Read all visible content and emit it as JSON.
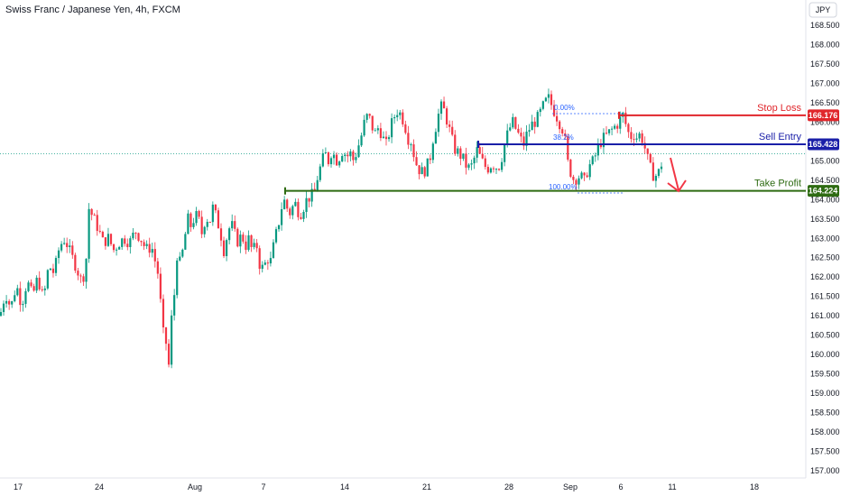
{
  "header": {
    "title": "Swiss Franc / Japanese Yen, 4h, FXCM",
    "currency_button": "JPY"
  },
  "chart_data": {
    "type": "candlestick",
    "ylim": [
      156.75,
      169.05
    ],
    "y_ticks": [
      "168.500",
      "168.000",
      "167.500",
      "167.000",
      "166.500",
      "166.000",
      "165.500",
      "165.000",
      "164.500",
      "164.000",
      "163.500",
      "163.000",
      "162.500",
      "162.000",
      "161.500",
      "161.000",
      "160.500",
      "160.000",
      "159.500",
      "159.000",
      "158.500",
      "158.000",
      "157.500",
      "157.000"
    ],
    "x_ticks": [
      "17",
      "24",
      "Aug",
      "7",
      "14",
      "21",
      "28",
      "Sep",
      "6",
      "11",
      "18"
    ],
    "colors": {
      "up": "#089981",
      "down": "#f23645"
    },
    "price_path": [
      [
        0,
        161.0
      ],
      [
        6,
        161.6
      ],
      [
        12,
        161.2
      ],
      [
        18,
        161.8
      ],
      [
        24,
        161.3
      ],
      [
        30,
        161.9
      ],
      [
        36,
        161.5
      ],
      [
        42,
        162.0
      ],
      [
        48,
        161.4
      ],
      [
        54,
        162.3
      ],
      [
        60,
        162.1
      ],
      [
        66,
        162.8
      ],
      [
        72,
        163.0
      ],
      [
        78,
        162.6
      ],
      [
        84,
        162.3
      ],
      [
        90,
        161.9
      ],
      [
        95,
        162.2
      ],
      [
        98,
        163.8
      ],
      [
        102,
        163.6
      ],
      [
        108,
        163.3
      ],
      [
        114,
        162.9
      ],
      [
        120,
        163.0
      ],
      [
        126,
        162.7
      ],
      [
        132,
        162.9
      ],
      [
        138,
        163.0
      ],
      [
        144,
        162.9
      ],
      [
        150,
        163.2
      ],
      [
        156,
        163.0
      ],
      [
        162,
        162.7
      ],
      [
        168,
        162.8
      ],
      [
        173,
        162.3
      ],
      [
        176,
        162.0
      ],
      [
        180,
        160.6
      ],
      [
        184,
        160.3
      ],
      [
        187,
        159.7
      ],
      [
        190,
        160.9
      ],
      [
        193,
        161.5
      ],
      [
        196,
        162.6
      ],
      [
        200,
        162.3
      ],
      [
        204,
        162.9
      ],
      [
        208,
        163.5
      ],
      [
        212,
        163.3
      ],
      [
        216,
        163.6
      ],
      [
        220,
        163.5
      ],
      [
        224,
        163.1
      ],
      [
        228,
        163.6
      ],
      [
        232,
        163.4
      ],
      [
        236,
        163.8
      ],
      [
        240,
        163.5
      ],
      [
        244,
        163.2
      ],
      [
        248,
        162.7
      ],
      [
        252,
        163.1
      ],
      [
        256,
        163.4
      ],
      [
        260,
        163.1
      ],
      [
        264,
        162.9
      ],
      [
        268,
        163.1
      ],
      [
        272,
        162.8
      ],
      [
        276,
        163.0
      ],
      [
        280,
        162.6
      ],
      [
        284,
        162.9
      ],
      [
        288,
        162.3
      ],
      [
        292,
        162.2
      ],
      [
        296,
        162.5
      ],
      [
        300,
        162.4
      ],
      [
        304,
        162.9
      ],
      [
        308,
        163.3
      ],
      [
        312,
        163.8
      ],
      [
        316,
        164.0
      ],
      [
        320,
        163.6
      ],
      [
        324,
        163.8
      ],
      [
        328,
        163.9
      ],
      [
        332,
        163.6
      ],
      [
        336,
        163.8
      ],
      [
        340,
        164.0
      ],
      [
        344,
        164.1
      ],
      [
        348,
        164.1
      ],
      [
        352,
        164.6
      ],
      [
        356,
        164.9
      ],
      [
        360,
        165.2
      ],
      [
        364,
        165.0
      ],
      [
        368,
        165.3
      ],
      [
        372,
        165.0
      ],
      [
        376,
        165.1
      ],
      [
        380,
        165.3
      ],
      [
        384,
        165.1
      ],
      [
        388,
        165.2
      ],
      [
        392,
        165.0
      ],
      [
        396,
        165.3
      ],
      [
        400,
        165.6
      ],
      [
        404,
        166.0
      ],
      [
        408,
        166.2
      ],
      [
        412,
        165.9
      ],
      [
        416,
        165.7
      ],
      [
        420,
        165.9
      ],
      [
        424,
        165.6
      ],
      [
        428,
        165.4
      ],
      [
        432,
        165.8
      ],
      [
        436,
        166.1
      ],
      [
        440,
        166.3
      ],
      [
        444,
        166.2
      ],
      [
        448,
        166.0
      ],
      [
        452,
        165.6
      ],
      [
        456,
        165.5
      ],
      [
        460,
        165.0
      ],
      [
        464,
        164.8
      ],
      [
        468,
        164.7
      ],
      [
        472,
        164.8
      ],
      [
        476,
        165.0
      ],
      [
        480,
        165.6
      ],
      [
        484,
        166.0
      ],
      [
        488,
        166.4
      ],
      [
        492,
        166.3
      ],
      [
        496,
        166.0
      ],
      [
        500,
        165.6
      ],
      [
        504,
        165.3
      ],
      [
        508,
        165.2
      ],
      [
        512,
        165.1
      ],
      [
        516,
        164.9
      ],
      [
        520,
        164.8
      ],
      [
        524,
        164.9
      ],
      [
        528,
        165.3
      ],
      [
        532,
        165.1
      ],
      [
        536,
        164.9
      ],
      [
        540,
        164.8
      ],
      [
        544,
        164.9
      ],
      [
        548,
        164.9
      ],
      [
        552,
        164.8
      ],
      [
        556,
        165.1
      ],
      [
        560,
        165.5
      ],
      [
        564,
        165.8
      ],
      [
        568,
        166.0
      ],
      [
        572,
        165.8
      ],
      [
        576,
        165.6
      ],
      [
        580,
        165.4
      ],
      [
        584,
        165.7
      ],
      [
        588,
        165.9
      ],
      [
        592,
        166.0
      ],
      [
        596,
        166.1
      ],
      [
        600,
        166.3
      ],
      [
        604,
        166.5
      ],
      [
        608,
        166.6
      ],
      [
        612,
        166.4
      ],
      [
        616,
        166.2
      ],
      [
        620,
        166.0
      ],
      [
        624,
        165.8
      ],
      [
        627,
        165.4
      ],
      [
        630,
        164.8
      ],
      [
        633,
        164.7
      ],
      [
        636,
        164.5
      ],
      [
        640,
        164.6
      ],
      [
        644,
        164.6
      ],
      [
        647,
        164.4
      ],
      [
        650,
        164.7
      ],
      [
        654,
        164.9
      ],
      [
        658,
        165.0
      ],
      [
        662,
        165.3
      ],
      [
        666,
        165.5
      ],
      [
        670,
        165.6
      ],
      [
        674,
        165.7
      ],
      [
        678,
        165.8
      ],
      [
        682,
        165.9
      ],
      [
        686,
        166.0
      ],
      [
        690,
        166.2
      ],
      [
        694,
        165.9
      ],
      [
        698,
        165.6
      ],
      [
        702,
        165.7
      ],
      [
        706,
        165.6
      ],
      [
        710,
        165.7
      ],
      [
        714,
        165.4
      ],
      [
        718,
        165.0
      ],
      [
        722,
        164.7
      ],
      [
        726,
        164.6
      ],
      [
        730,
        164.7
      ],
      [
        734,
        165.0
      ]
    ],
    "levels": {
      "stop_loss": {
        "label": "Stop Loss",
        "value": "166.176",
        "color": "#e0262b"
      },
      "sell_entry": {
        "label": "Sell Entry",
        "value": "165.428",
        "color": "#1a1fa8"
      },
      "take_profit": {
        "label": "Take Profit",
        "value": "164.224",
        "color": "#2e6b12"
      }
    },
    "fib_labels": [
      "0.00%",
      "38.2%",
      "100.00%"
    ],
    "current_price": 165.18
  }
}
